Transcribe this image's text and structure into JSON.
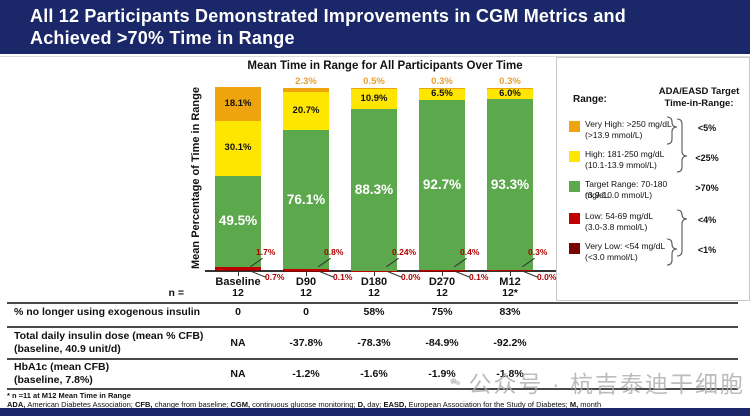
{
  "header": {
    "title_lines": [
      "All 12 Participants Demonstrated Improvements in CGM Metrics and",
      "Achieved >70% Time in Range"
    ]
  },
  "chart_data": {
    "type": "bar",
    "stacked": true,
    "title": "Mean Time in Range for All Participants Over Time",
    "ylabel": "Mean Percentage of Time in Range",
    "xlabel": "",
    "ylim": [
      0,
      100
    ],
    "categories": [
      "Baseline",
      "D90",
      "D180",
      "D270",
      "M12"
    ],
    "series": [
      {
        "key": "very_low",
        "name": "Very Low: <54 mg/dL",
        "values": [
          0.7,
          0.1,
          0.0,
          0.1,
          0.0
        ],
        "labels": [
          "0.7%",
          "0.1%",
          "0.0%",
          "0.1%",
          "0.0%"
        ]
      },
      {
        "key": "low",
        "name": "Low: 54-69 mg/dL",
        "values": [
          1.7,
          0.8,
          0.24,
          0.4,
          0.3
        ],
        "labels": [
          "1.7%",
          "0.8%",
          "0.24%",
          "0.4%",
          "0.3%"
        ]
      },
      {
        "key": "target",
        "name": "Target Range: 70-180 mg/dL",
        "values": [
          49.5,
          76.1,
          88.3,
          92.7,
          93.3
        ],
        "labels": [
          "49.5%",
          "76.1%",
          "88.3%",
          "92.7%",
          "93.3%"
        ]
      },
      {
        "key": "high",
        "name": "High: 181-250 mg/dL",
        "values": [
          30.1,
          20.7,
          10.9,
          6.5,
          6.0
        ],
        "labels": [
          "30.1%",
          "20.7%",
          "10.9%",
          "6.5%",
          "6.0%"
        ]
      },
      {
        "key": "very_high",
        "name": "Very High: >250 mg/dL",
        "values": [
          18.1,
          2.3,
          0.5,
          0.3,
          0.3
        ],
        "labels": [
          "18.1%",
          "2.3%",
          "0.5%",
          "0.3%",
          "0.3%"
        ]
      }
    ]
  },
  "legend": {
    "range_header": "Range:",
    "target_header_lines": [
      "ADA/EASD Target",
      "Time-in-Range:"
    ],
    "items": [
      {
        "label": "Very High: >250 mg/dL",
        "sub": "(>13.9 mmol/L)",
        "color": "#EDA40E",
        "target": "<5%"
      },
      {
        "label": "High: 181-250 mg/dL",
        "sub": "(10.1-13.9 mmol/L)",
        "color": "#FFE600",
        "target": "<25%"
      },
      {
        "label": "Target Range: 70-180 mg/dL",
        "sub": "(3.9-10.0 mmol/L)",
        "color": "#5CA84D",
        "target": ">70%"
      },
      {
        "label": "Low: 54-69 mg/dL",
        "sub": "(3.0-3.8 mmol/L)",
        "color": "#C00000",
        "target": "<4%"
      },
      {
        "label": "Very Low: <54 mg/dL",
        "sub": "(<3.0 mmol/L)",
        "color": "#7A0505",
        "target": "<1%"
      }
    ]
  },
  "table": {
    "n_label": "n =",
    "n_values": [
      "12",
      "12",
      "12",
      "12",
      "12*"
    ],
    "rows": [
      {
        "label_lines": [
          "% no longer using exogenous insulin"
        ],
        "values": [
          "0",
          "0",
          "58%",
          "75%",
          "83%"
        ]
      },
      {
        "label_lines": [
          "Total daily insulin dose (mean % CFB)",
          "(baseline, 40.9 unit/d)"
        ],
        "values": [
          "NA",
          "-37.8%",
          "-78.3%",
          "-84.9%",
          "-92.2%"
        ]
      },
      {
        "label_lines": [
          "HbA1c (mean CFB)",
          "(baseline, 7.8%)"
        ],
        "values": [
          "NA",
          "-1.2%",
          "-1.6%",
          "-1.9%",
          "-1.8%"
        ]
      }
    ]
  },
  "footnotes": {
    "note": "* n =11 at M12 Mean Time in Range",
    "abbreviations": [
      {
        "term": "ADA,",
        "def": "American Diabetes Association; "
      },
      {
        "term": "CFB,",
        "def": "change from baseline; "
      },
      {
        "term": "CGM,",
        "def": "continuous glucose monitoring; "
      },
      {
        "term": "D,",
        "def": "day; "
      },
      {
        "term": "EASD,",
        "def": "European Association for the Study of Diabetes; "
      },
      {
        "term": "M,",
        "def": "month"
      }
    ]
  },
  "watermark": {
    "text": "公众号 · 杭吉泰迪干细胞"
  },
  "colors": {
    "header_bg": "#1A2768",
    "very_high": "#EDA40E",
    "high": "#FFE600",
    "target": "#5CA84D",
    "low": "#C00000",
    "very_low": "#7A0505",
    "callout_text": "#B00000",
    "above_label": "#E8A030",
    "axis": "#333333"
  }
}
